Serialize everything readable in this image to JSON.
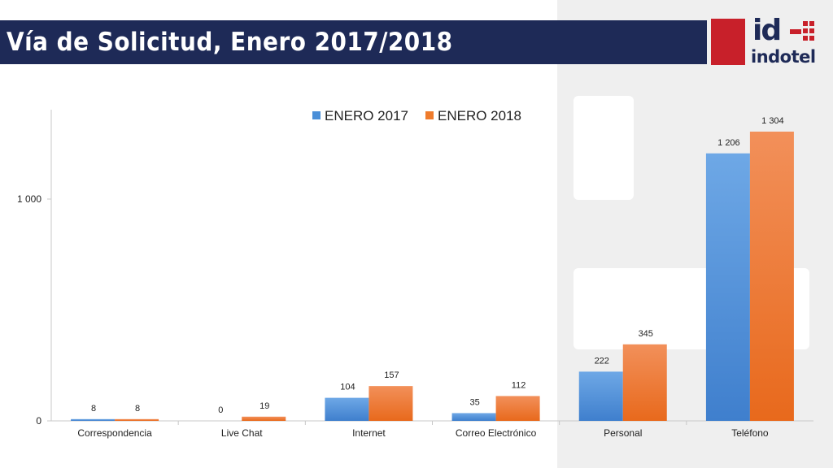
{
  "header": {
    "title": "Vía de Solicitud, Enero 2017/2018"
  },
  "logo": {
    "mark": "id",
    "word": "indotel",
    "brand_color": "#1e2a57",
    "accent_color": "#c8202a"
  },
  "chart_data": {
    "type": "bar",
    "title": "",
    "xlabel": "",
    "ylabel": "",
    "categories": [
      "Correspondencia",
      "Live Chat",
      "Internet",
      "Correo Electrónico",
      "Personal",
      "Teléfono"
    ],
    "series": [
      {
        "name": "ENERO 2017",
        "color": "#4a8fd8",
        "values": [
          8,
          0,
          104,
          35,
          222,
          1206
        ],
        "labels": [
          "8",
          "0",
          "104",
          "35",
          "222",
          "1 206"
        ]
      },
      {
        "name": "ENERO 2018",
        "color": "#ef7b2c",
        "values": [
          8,
          19,
          157,
          112,
          345,
          1304
        ],
        "labels": [
          "8",
          "19",
          "157",
          "112",
          "345",
          "1 304"
        ]
      }
    ],
    "ylim": [
      0,
      1400
    ],
    "yticks": [
      0,
      1000
    ],
    "ytick_labels": [
      "0",
      "1 000"
    ],
    "legend": "top",
    "grid": false
  }
}
